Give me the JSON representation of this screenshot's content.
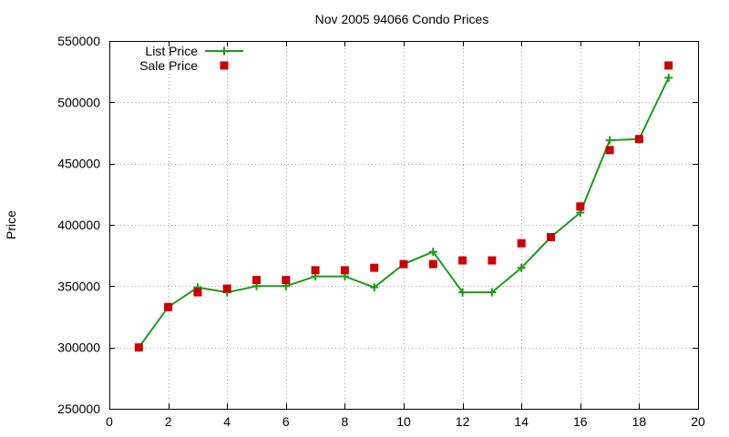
{
  "chart_data": {
    "type": "line",
    "title": "Nov 2005 94066 Condo Prices",
    "xlabel": "",
    "ylabel": "Price",
    "xlim": [
      0,
      20
    ],
    "ylim": [
      250000,
      550000
    ],
    "xticks": [
      0,
      2,
      4,
      6,
      8,
      10,
      12,
      14,
      16,
      18,
      20
    ],
    "yticks": [
      250000,
      300000,
      350000,
      400000,
      450000,
      500000,
      550000
    ],
    "grid": true,
    "legend_position": "top-left",
    "series": [
      {
        "name": "List Price",
        "style": "line-with-plus-markers",
        "color": "#1a9a1a",
        "x": [
          1,
          2,
          3,
          4,
          5,
          6,
          7,
          8,
          9,
          10,
          11,
          12,
          13,
          14,
          15,
          16,
          17,
          18,
          19
        ],
        "values": [
          300000,
          333000,
          349000,
          345000,
          350000,
          350000,
          358000,
          358000,
          349000,
          368000,
          378000,
          345000,
          345000,
          365000,
          390000,
          410000,
          469000,
          470000,
          520000
        ]
      },
      {
        "name": "Sale Price",
        "style": "square-markers",
        "color": "#cc0000",
        "x": [
          1,
          2,
          3,
          4,
          5,
          6,
          7,
          8,
          9,
          10,
          11,
          12,
          13,
          14,
          15,
          16,
          17,
          18,
          19
        ],
        "values": [
          300000,
          333000,
          345000,
          348000,
          355000,
          355000,
          363000,
          363000,
          365000,
          368000,
          368000,
          371000,
          371000,
          385000,
          390000,
          415000,
          461000,
          470000,
          530000
        ]
      }
    ]
  }
}
